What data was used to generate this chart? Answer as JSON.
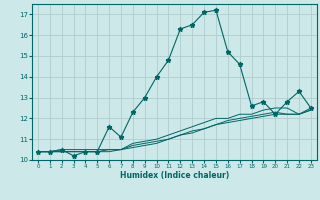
{
  "xlabel": "Humidex (Indice chaleur)",
  "ylabel": "",
  "bg_color": "#cde8e8",
  "grid_color": "#b0cccc",
  "line_color": "#006666",
  "xlim": [
    -0.5,
    23.5
  ],
  "ylim": [
    10,
    17.5
  ],
  "yticks": [
    10,
    11,
    12,
    13,
    14,
    15,
    16,
    17
  ],
  "xticks": [
    0,
    1,
    2,
    3,
    4,
    5,
    6,
    7,
    8,
    9,
    10,
    11,
    12,
    13,
    14,
    15,
    16,
    17,
    18,
    19,
    20,
    21,
    22,
    23
  ],
  "main_x": [
    0,
    1,
    2,
    3,
    4,
    5,
    6,
    7,
    8,
    9,
    10,
    11,
    12,
    13,
    14,
    15,
    16,
    17,
    18,
    19,
    20,
    21,
    22,
    23
  ],
  "main_y": [
    10.4,
    10.4,
    10.5,
    10.2,
    10.4,
    10.4,
    11.6,
    11.1,
    12.3,
    13.0,
    14.0,
    14.8,
    16.3,
    16.5,
    17.1,
    17.2,
    15.2,
    14.6,
    12.6,
    12.8,
    12.2,
    12.8,
    13.3,
    12.5
  ],
  "line2_x": [
    0,
    1,
    2,
    3,
    4,
    5,
    6,
    7,
    8,
    9,
    10,
    11,
    12,
    13,
    14,
    15,
    16,
    17,
    18,
    19,
    20,
    21,
    22,
    23
  ],
  "line2_y": [
    10.4,
    10.4,
    10.5,
    10.5,
    10.5,
    10.5,
    10.5,
    10.5,
    10.8,
    10.9,
    11.0,
    11.2,
    11.4,
    11.6,
    11.8,
    12.0,
    12.0,
    12.2,
    12.2,
    12.4,
    12.5,
    12.5,
    12.2,
    12.5
  ],
  "line3_x": [
    0,
    1,
    2,
    3,
    4,
    5,
    6,
    7,
    8,
    9,
    10,
    11,
    12,
    13,
    14,
    15,
    16,
    17,
    18,
    19,
    20,
    21,
    22,
    23
  ],
  "line3_y": [
    10.4,
    10.4,
    10.4,
    10.4,
    10.4,
    10.4,
    10.4,
    10.5,
    10.6,
    10.7,
    10.8,
    11.0,
    11.2,
    11.3,
    11.5,
    11.7,
    11.9,
    12.0,
    12.1,
    12.2,
    12.3,
    12.2,
    12.2,
    12.4
  ],
  "line4_x": [
    0,
    1,
    2,
    3,
    4,
    5,
    6,
    7,
    8,
    9,
    10,
    11,
    12,
    13,
    14,
    15,
    16,
    17,
    18,
    19,
    20,
    21,
    22,
    23
  ],
  "line4_y": [
    10.4,
    10.4,
    10.4,
    10.4,
    10.4,
    10.4,
    10.5,
    10.5,
    10.7,
    10.8,
    10.9,
    11.0,
    11.2,
    11.4,
    11.5,
    11.7,
    11.8,
    11.9,
    12.0,
    12.1,
    12.2,
    12.2,
    12.2,
    12.4
  ]
}
